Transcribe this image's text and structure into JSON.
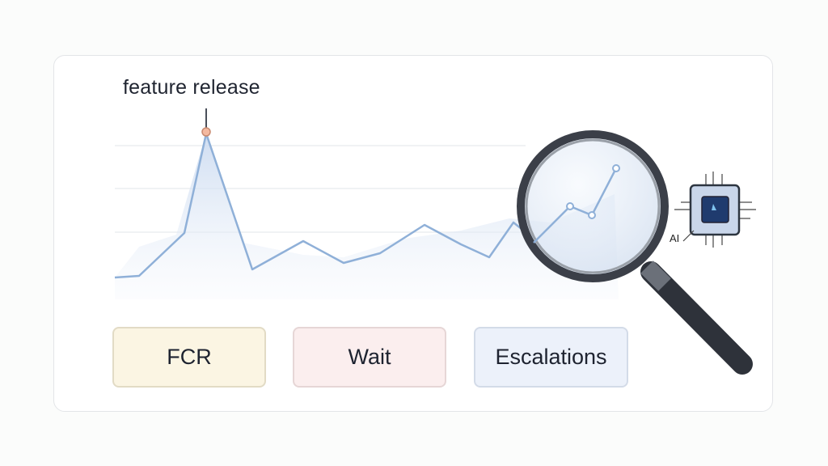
{
  "annotation": {
    "label": "feature release",
    "marker_color": "#f4b9a0"
  },
  "metrics": [
    {
      "label": "FCR",
      "color": "#fbf5e3"
    },
    {
      "label": "Wait",
      "color": "#fbeeee"
    },
    {
      "label": "Escalations",
      "color": "#ecf1fa"
    }
  ],
  "chip": {
    "label": "AI"
  },
  "colors": {
    "line": "#8fb0d8",
    "fill": "#dbe6f5",
    "magnifier": "#3b3f48"
  }
}
